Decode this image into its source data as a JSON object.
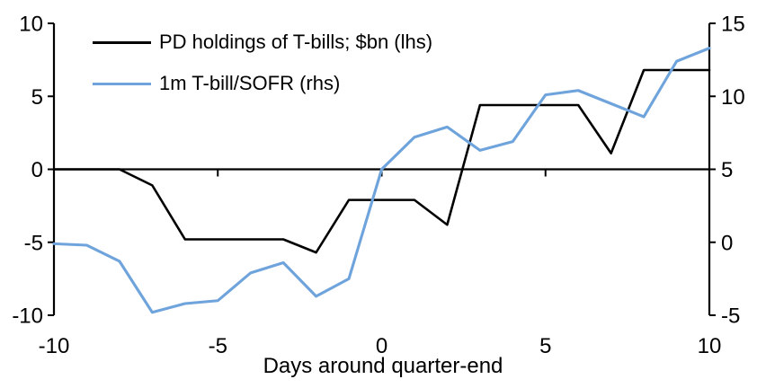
{
  "chart_data": {
    "type": "line",
    "title": "",
    "xlabel": "Days around quarter-end",
    "x": [
      -10,
      -9,
      -8,
      -7,
      -6,
      -5,
      -4,
      -3,
      -2,
      -1,
      0,
      1,
      2,
      3,
      4,
      5,
      6,
      7,
      8,
      9,
      10
    ],
    "series": [
      {
        "name": "PD holdings of T-bills; $bn (lhs)",
        "axis": "left",
        "color": "#000000",
        "values": [
          0,
          0,
          0,
          -1.1,
          -4.8,
          -4.8,
          -4.8,
          -4.8,
          -5.7,
          -2.1,
          -2.1,
          -2.1,
          -3.8,
          4.4,
          4.4,
          4.4,
          4.4,
          1.1,
          6.8,
          6.8,
          6.8
        ]
      },
      {
        "name": "1m T-bill/SOFR (rhs)",
        "axis": "right",
        "color": "#6EA3DC",
        "values": [
          -0.1,
          -0.2,
          -1.3,
          -4.8,
          -4.2,
          -4.0,
          -2.1,
          -1.4,
          -3.7,
          -2.5,
          5.0,
          7.2,
          7.9,
          6.3,
          6.9,
          10.1,
          10.4,
          9.5,
          8.6,
          12.4,
          13.3
        ]
      }
    ],
    "left_axis": {
      "range": [
        -10,
        10
      ],
      "ticks": [
        10,
        5,
        0,
        -5,
        -10
      ]
    },
    "right_axis": {
      "range": [
        -5,
        15
      ],
      "ticks": [
        15,
        10,
        5,
        0,
        -5
      ]
    },
    "x_axis": {
      "range": [
        -10,
        10
      ],
      "ticks": [
        -10,
        -5,
        0,
        5,
        10
      ]
    },
    "grid": false,
    "legend_position": "top-left-inside",
    "axis_color": "#000000"
  }
}
